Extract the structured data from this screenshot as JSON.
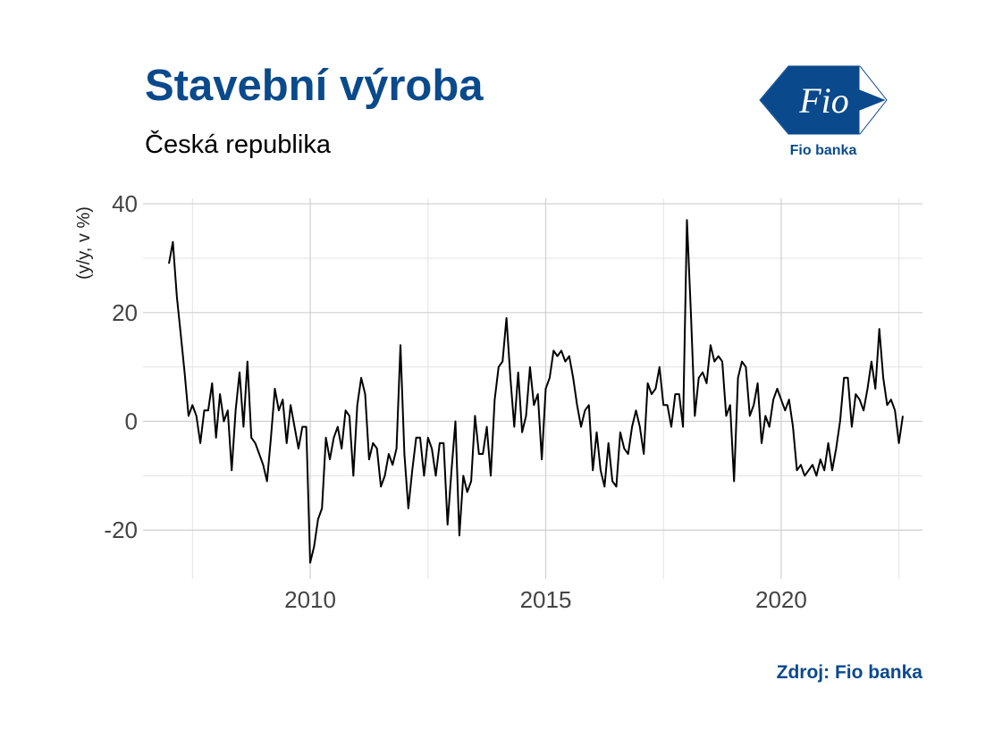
{
  "header": {
    "title": "Stavební výroba",
    "subtitle": "Česká republika"
  },
  "logo": {
    "mark_text": "Fio",
    "caption": "Fio banka",
    "color": "#0a4a8c"
  },
  "source": "Zdroj: Fio banka",
  "chart_data": {
    "type": "line",
    "ylabel": "(y/y, v %)",
    "xlim": [
      2006.45,
      2023.0
    ],
    "ylim": [
      -29,
      41
    ],
    "x_ticks": [
      2010,
      2015,
      2020
    ],
    "x_tick_labels": [
      "2010",
      "2015",
      "2020"
    ],
    "y_ticks": [
      -20,
      0,
      20,
      40
    ],
    "y_tick_labels": [
      "-20",
      "0",
      "20",
      "40"
    ],
    "grid": true,
    "line_color": "#000000",
    "x_start": 2007.0,
    "x_step": 0.08333,
    "values": [
      29,
      33,
      23,
      16,
      9,
      1,
      3,
      1,
      -4,
      2,
      2,
      7,
      -3,
      5,
      0,
      2,
      -9,
      2,
      9,
      -1,
      11,
      -3,
      -4,
      -6,
      -8,
      -11,
      -3,
      6,
      2,
      4,
      -4,
      3,
      -1,
      -5,
      -1,
      -1,
      -26,
      -23,
      -18,
      -16,
      -3,
      -7,
      -3,
      -1,
      -5,
      2,
      1,
      -10,
      3,
      8,
      5,
      -7,
      -4,
      -5,
      -12,
      -10,
      -6,
      -8,
      -5,
      14,
      -6,
      -16,
      -9,
      -3,
      -3,
      -10,
      -3,
      -5,
      -10,
      -4,
      -4,
      -19,
      -9,
      0,
      -21,
      -10,
      -13,
      -11,
      1,
      -6,
      -6,
      -1,
      -10,
      4,
      10,
      11,
      19,
      8,
      -1,
      9,
      -2,
      1,
      10,
      3,
      5,
      -7,
      6,
      8,
      13,
      12,
      13,
      11,
      12,
      8,
      3,
      -1,
      2,
      3,
      -9,
      -2,
      -9,
      -12,
      -4,
      -11,
      -12,
      -2,
      -5,
      -6,
      -1,
      2,
      -1,
      -6,
      7,
      5,
      6,
      10,
      3,
      3,
      -1,
      5,
      5,
      -1,
      37,
      20,
      1,
      8,
      9,
      7,
      14,
      11,
      12,
      11,
      1,
      3,
      -11,
      8,
      11,
      10,
      1,
      3,
      7,
      -4,
      1,
      -1,
      4,
      6,
      4,
      2,
      4,
      -1,
      -9,
      -8,
      -10,
      -9,
      -8,
      -10,
      -7,
      -9,
      -4,
      -9,
      -5,
      0,
      8,
      8,
      -1,
      5,
      4,
      2,
      6,
      11,
      6,
      17,
      8,
      3,
      4,
      2,
      -4,
      1
    ]
  }
}
